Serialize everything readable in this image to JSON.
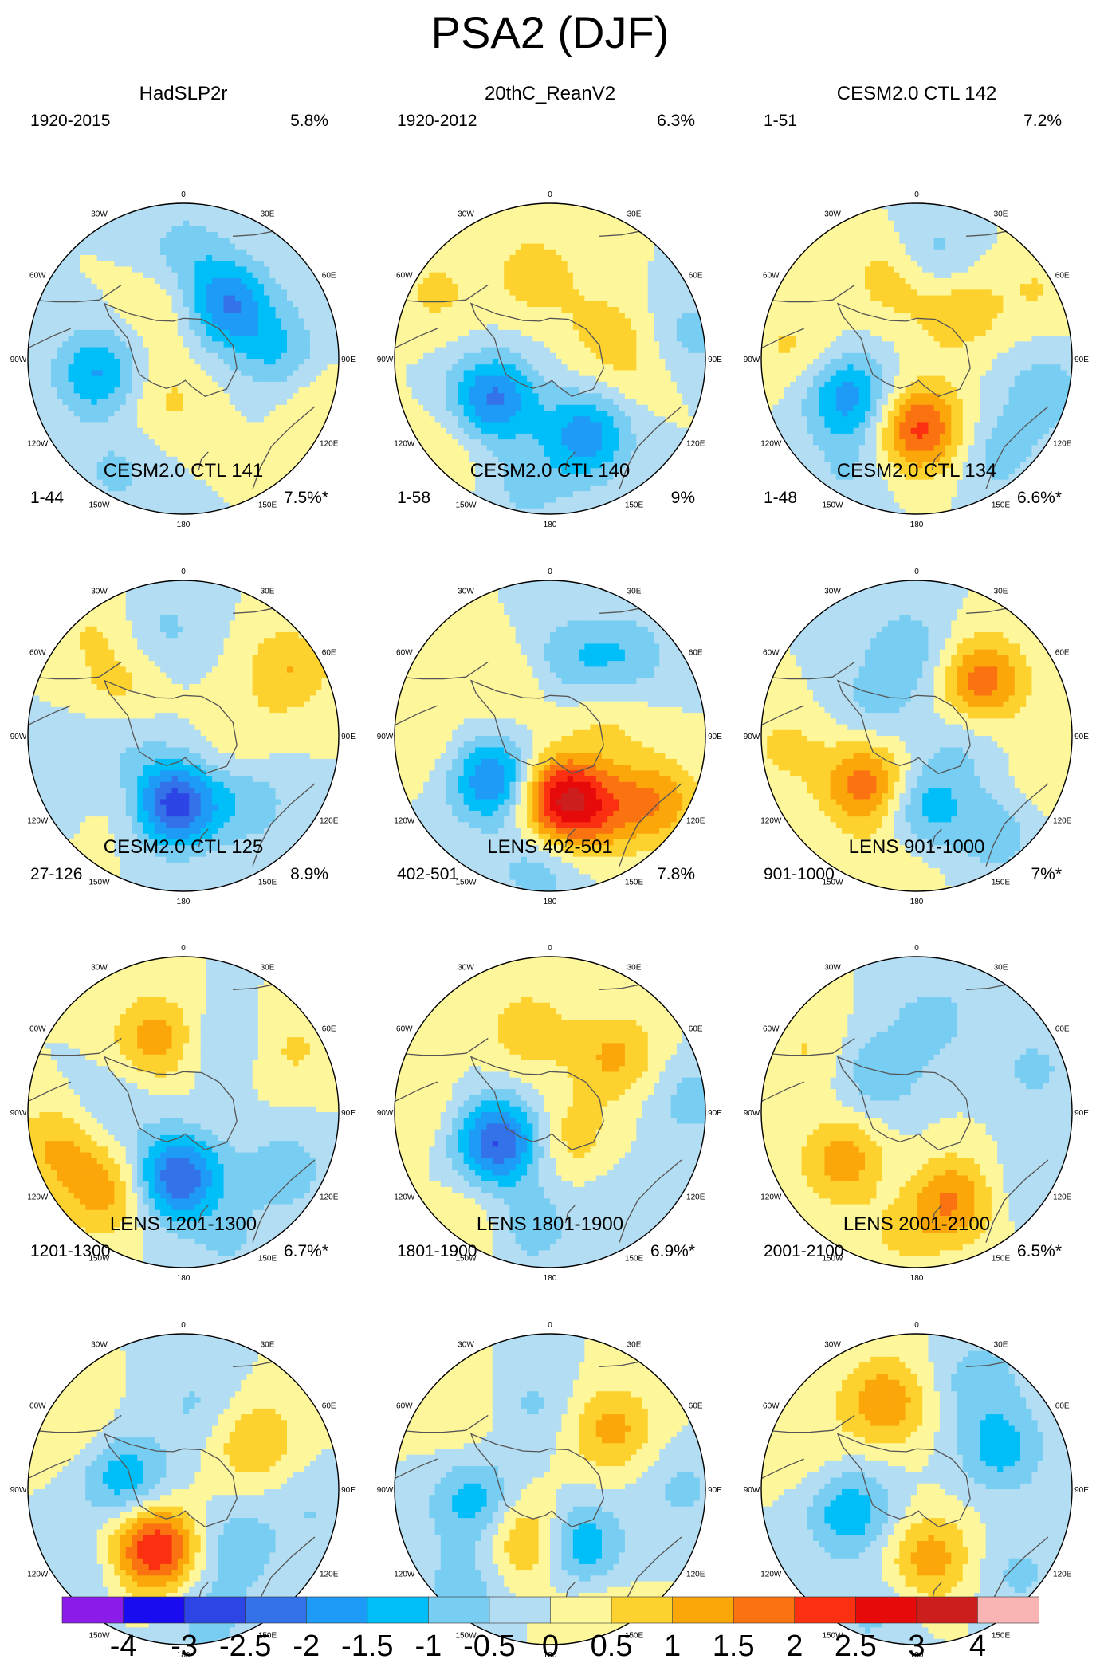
{
  "title": "PSA2 (DJF)",
  "lon_labels": [
    "0",
    "30E",
    "60E",
    "90E",
    "120E",
    "150E",
    "180",
    "150W",
    "120W",
    "90W",
    "60W",
    "30W"
  ],
  "colorbar": {
    "ticks": [
      "-4",
      "-3",
      "-2.5",
      "-2",
      "-1.5",
      "-1",
      "-0.5",
      "0",
      "0.5",
      "1",
      "1.5",
      "2",
      "2.5",
      "3",
      "4"
    ],
    "colors": [
      "#8a1be8",
      "#1a0cf0",
      "#2d45e5",
      "#3372e8",
      "#1e9af7",
      "#00bff8",
      "#78cdf2",
      "#b3ddf2",
      "#fdf69a",
      "#fdd22e",
      "#fba70a",
      "#fa7310",
      "#fb3010",
      "#e70a0a",
      "#cd1e1e",
      "#fbb4b4"
    ]
  },
  "chart_data": {
    "type": "polar-contour",
    "variable": "PSA2 (DJF)",
    "levels": [
      -4,
      -3,
      -2.5,
      -2,
      -1.5,
      -1,
      -0.5,
      0,
      0.5,
      1,
      1.5,
      2,
      2.5,
      3,
      4
    ],
    "panels": [
      {
        "title": "HadSLP2r",
        "period": "1920-2015",
        "variance": "5.8%",
        "centers": [
          {
            "lon": -100,
            "r": 0.55,
            "v": -1.6
          },
          {
            "lon": 38,
            "r": 0.45,
            "v": -2.0
          },
          {
            "lon": 85,
            "r": 0.6,
            "v": -1.0
          },
          {
            "lon": -150,
            "r": 0.85,
            "v": -0.6
          },
          {
            "lon": -20,
            "r": 0.35,
            "v": 0.6
          },
          {
            "lon": -140,
            "r": 0.3,
            "v": 0.4
          },
          {
            "lon": -175,
            "r": 0.3,
            "v": 0.3
          },
          {
            "lon": 110,
            "r": 0.95,
            "v": 0.5
          },
          {
            "lon": 0,
            "r": 0.7,
            "v": -0.7
          }
        ]
      },
      {
        "title": "20thC_ReanV2",
        "period": "1920-2012",
        "variance": "6.3%",
        "centers": [
          {
            "lon": -125,
            "r": 0.45,
            "v": -2.1
          },
          {
            "lon": 155,
            "r": 0.55,
            "v": -1.8
          },
          {
            "lon": -10,
            "r": 0.55,
            "v": 0.8
          },
          {
            "lon": 60,
            "r": 0.4,
            "v": 0.6
          },
          {
            "lon": -60,
            "r": 0.85,
            "v": 0.6
          },
          {
            "lon": -130,
            "r": 0.9,
            "v": 0.55
          },
          {
            "lon": 95,
            "r": 0.55,
            "v": 0.5
          },
          {
            "lon": 80,
            "r": 0.9,
            "v": -0.7
          },
          {
            "lon": -170,
            "r": 0.85,
            "v": -0.6
          }
        ]
      },
      {
        "title": "CESM2.0 CTL 142",
        "period": "1-51",
        "variance": "7.2%",
        "centers": [
          {
            "lon": -120,
            "r": 0.5,
            "v": -1.8
          },
          {
            "lon": 178,
            "r": 0.45,
            "v": 2.2
          },
          {
            "lon": -15,
            "r": 0.55,
            "v": 0.9
          },
          {
            "lon": 40,
            "r": 0.4,
            "v": 0.9
          },
          {
            "lon": 8,
            "r": 0.65,
            "v": -0.9
          },
          {
            "lon": -85,
            "r": 0.8,
            "v": 0.6
          },
          {
            "lon": 105,
            "r": 0.85,
            "v": -0.8
          },
          {
            "lon": 140,
            "r": 0.8,
            "v": -0.7
          },
          {
            "lon": -150,
            "r": 0.85,
            "v": -0.5
          },
          {
            "lon": 60,
            "r": 0.9,
            "v": 0.5
          }
        ]
      },
      {
        "title": "CESM2.0 CTL 141",
        "period": "1-44",
        "variance": "7.5%*",
        "centers": [
          {
            "lon": -170,
            "r": 0.45,
            "v": -3.1
          },
          {
            "lon": -150,
            "r": 0.55,
            "v": 0.7
          },
          {
            "lon": -55,
            "r": 0.5,
            "v": 0.7
          },
          {
            "lon": 58,
            "r": 0.8,
            "v": 1.0
          },
          {
            "lon": 135,
            "r": 0.6,
            "v": -0.8
          },
          {
            "lon": 95,
            "r": 0.35,
            "v": 0.4
          },
          {
            "lon": -10,
            "r": 0.7,
            "v": -0.6
          },
          {
            "lon": -90,
            "r": 0.4,
            "v": -0.5
          },
          {
            "lon": -105,
            "r": 0.8,
            "v": -0.4
          },
          {
            "lon": -40,
            "r": 0.9,
            "v": 0.5
          }
        ]
      },
      {
        "title": "CESM2.0 CTL 140",
        "period": "1-58",
        "variance": "9%",
        "centers": [
          {
            "lon": -130,
            "r": 0.45,
            "v": -2.2
          },
          {
            "lon": 175,
            "r": 0.4,
            "v": 2.6
          },
          {
            "lon": 150,
            "r": 0.55,
            "v": 1.4
          },
          {
            "lon": 122,
            "r": 0.8,
            "v": 1.4
          },
          {
            "lon": 15,
            "r": 0.5,
            "v": -0.9
          },
          {
            "lon": 45,
            "r": 0.7,
            "v": -0.9
          },
          {
            "lon": -35,
            "r": 0.4,
            "v": 0.5
          },
          {
            "lon": -175,
            "r": 0.85,
            "v": -0.8
          },
          {
            "lon": 70,
            "r": 0.4,
            "v": 0.6
          },
          {
            "lon": -90,
            "r": 0.85,
            "v": 0.5
          }
        ]
      },
      {
        "title": "CESM2.0 CTL 134",
        "period": "1-48",
        "variance": "6.6%*",
        "centers": [
          {
            "lon": 50,
            "r": 0.55,
            "v": 1.8
          },
          {
            "lon": -135,
            "r": 0.45,
            "v": 1.9
          },
          {
            "lon": -5,
            "r": 0.55,
            "v": -0.9
          },
          {
            "lon": -55,
            "r": 0.35,
            "v": -0.6
          },
          {
            "lon": 175,
            "r": 0.45,
            "v": -1.3
          },
          {
            "lon": 140,
            "r": 0.8,
            "v": -0.8
          },
          {
            "lon": 100,
            "r": 0.3,
            "v": -0.5
          },
          {
            "lon": -95,
            "r": 0.85,
            "v": 0.6
          },
          {
            "lon": -170,
            "r": 0.9,
            "v": 0.5
          },
          {
            "lon": 110,
            "r": 0.85,
            "v": 0.4
          }
        ]
      },
      {
        "title": "CESM2.0 CTL 125",
        "period": "27-126",
        "variance": "8.9%",
        "centers": [
          {
            "lon": -175,
            "r": 0.42,
            "v": -2.5
          },
          {
            "lon": -20,
            "r": 0.5,
            "v": 1.3
          },
          {
            "lon": -135,
            "r": 0.72,
            "v": 1.3
          },
          {
            "lon": -105,
            "r": 0.85,
            "v": 1.0
          },
          {
            "lon": -85,
            "r": 0.45,
            "v": -0.5
          },
          {
            "lon": 120,
            "r": 0.75,
            "v": -0.8
          },
          {
            "lon": 60,
            "r": 0.8,
            "v": 0.6
          },
          {
            "lon": 30,
            "r": 0.5,
            "v": -0.6
          },
          {
            "lon": 160,
            "r": 0.9,
            "v": -0.5
          }
        ]
      },
      {
        "title": "LENS 402-501",
        "period": "402-501",
        "variance": "7.8%",
        "centers": [
          {
            "lon": -120,
            "r": 0.38,
            "v": -2.6
          },
          {
            "lon": -15,
            "r": 0.55,
            "v": 0.8
          },
          {
            "lon": 50,
            "r": 0.55,
            "v": 1.1
          },
          {
            "lon": 145,
            "r": 0.2,
            "v": 0.8
          },
          {
            "lon": -170,
            "r": 0.75,
            "v": -0.8
          },
          {
            "lon": 85,
            "r": 0.9,
            "v": -0.7
          },
          {
            "lon": 140,
            "r": 0.8,
            "v": -0.5
          },
          {
            "lon": -90,
            "r": 0.85,
            "v": 0.5
          },
          {
            "lon": -145,
            "r": 0.85,
            "v": 0.5
          }
        ]
      },
      {
        "title": "LENS 901-1000",
        "period": "901-1000",
        "variance": "7%*",
        "centers": [
          {
            "lon": -125,
            "r": 0.55,
            "v": 1.4
          },
          {
            "lon": 160,
            "r": 0.6,
            "v": 1.6
          },
          {
            "lon": -45,
            "r": 0.35,
            "v": -0.9
          },
          {
            "lon": 10,
            "r": 0.6,
            "v": -0.7
          },
          {
            "lon": 70,
            "r": 0.8,
            "v": -0.6
          },
          {
            "lon": -60,
            "r": 0.8,
            "v": 0.55
          },
          {
            "lon": -170,
            "r": 0.8,
            "v": 0.5
          },
          {
            "lon": -160,
            "r": 0.45,
            "v": -0.4
          },
          {
            "lon": 120,
            "r": 0.9,
            "v": -0.5
          }
        ]
      },
      {
        "title": "LENS 1201-1300",
        "period": "1201-1300",
        "variance": "6.7%*",
        "centers": [
          {
            "lon": -155,
            "r": 0.42,
            "v": 2.6
          },
          {
            "lon": -80,
            "r": 0.38,
            "v": -1.4
          },
          {
            "lon": 55,
            "r": 0.55,
            "v": 1.0
          },
          {
            "lon": 10,
            "r": 0.55,
            "v": -0.6
          },
          {
            "lon": 140,
            "r": 0.5,
            "v": -0.9
          },
          {
            "lon": 170,
            "r": 0.85,
            "v": -0.7
          },
          {
            "lon": -60,
            "r": 0.85,
            "v": 0.5
          },
          {
            "lon": -130,
            "r": 0.85,
            "v": -0.5
          },
          {
            "lon": 100,
            "r": 0.85,
            "v": -0.5
          }
        ]
      },
      {
        "title": "LENS 1801-1900",
        "period": "1801-1900",
        "variance": "6.9%*",
        "centers": [
          {
            "lon": -160,
            "r": 0.35,
            "v": 1.5
          },
          {
            "lon": 155,
            "r": 0.4,
            "v": -1.7
          },
          {
            "lon": -100,
            "r": 0.5,
            "v": -1.3
          },
          {
            "lon": 45,
            "r": 0.55,
            "v": 1.2
          },
          {
            "lon": -10,
            "r": 0.55,
            "v": -0.6
          },
          {
            "lon": -140,
            "r": 0.85,
            "v": -0.8
          },
          {
            "lon": 90,
            "r": 0.85,
            "v": -0.6
          },
          {
            "lon": 160,
            "r": 0.85,
            "v": 0.5
          },
          {
            "lon": -50,
            "r": 0.8,
            "v": 0.5
          }
        ]
      },
      {
        "title": "LENS 2001-2100",
        "period": "2001-2100",
        "variance": "6.5%*",
        "centers": [
          {
            "lon": -110,
            "r": 0.45,
            "v": -1.4
          },
          {
            "lon": -20,
            "r": 0.6,
            "v": 1.4
          },
          {
            "lon": 170,
            "r": 0.45,
            "v": 1.3
          },
          {
            "lon": 65,
            "r": 0.6,
            "v": -1.2
          },
          {
            "lon": 30,
            "r": 0.8,
            "v": -0.8
          },
          {
            "lon": -160,
            "r": 0.85,
            "v": -0.6
          },
          {
            "lon": 130,
            "r": 0.85,
            "v": -0.6
          },
          {
            "lon": -70,
            "r": 0.8,
            "v": 0.4
          }
        ]
      }
    ]
  }
}
